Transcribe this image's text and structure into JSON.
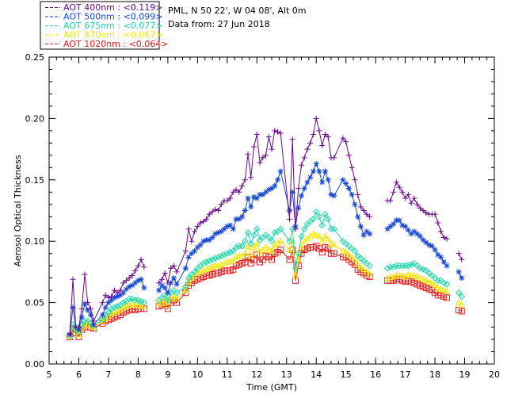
{
  "header": {
    "site": "PML, N 50 22', W 04 08', Alt 0m",
    "date": "Data from: 27 Jun 2018"
  },
  "chart_data": {
    "type": "line",
    "xlabel": "Time (GMT)",
    "ylabel": "Aerosol Optical Thickness",
    "xlim": [
      5,
      20
    ],
    "ylim": [
      0,
      0.25
    ],
    "xticks": [
      "5",
      "6",
      "7",
      "8",
      "9",
      "10",
      "11",
      "12",
      "13",
      "14",
      "15",
      "16",
      "17",
      "18",
      "19",
      "20"
    ],
    "yticks": [
      "0.00",
      "0.05",
      "0.10",
      "0.15",
      "0.20",
      "0.25"
    ],
    "legend_position": "top-left, above plot",
    "series": [
      {
        "name": "AOT  400nm : <0.119>",
        "color": "#6a0a8a",
        "marker": "plus",
        "x": [
          5.7,
          5.8,
          5.9,
          6.0,
          6.1,
          6.2,
          6.3,
          6.4,
          6.5,
          6.8,
          6.9,
          7.0,
          7.1,
          7.2,
          7.3,
          7.4,
          7.5,
          7.6,
          7.7,
          7.8,
          7.9,
          8.0,
          8.1,
          8.2,
          8.7,
          8.8,
          8.9,
          9.0,
          9.1,
          9.2,
          9.3,
          9.6,
          9.7,
          9.8,
          9.9,
          10.0,
          10.1,
          10.2,
          10.3,
          10.4,
          10.5,
          10.6,
          10.7,
          10.8,
          10.9,
          11.0,
          11.1,
          11.2,
          11.3,
          11.4,
          11.5,
          11.6,
          11.7,
          11.8,
          11.9,
          12.0,
          12.1,
          12.2,
          12.3,
          12.4,
          12.5,
          12.6,
          12.7,
          12.8,
          13.1,
          13.2,
          13.3,
          13.4,
          13.5,
          13.6,
          13.7,
          13.8,
          13.9,
          14.0,
          14.1,
          14.2,
          14.3,
          14.4,
          14.5,
          14.6,
          14.9,
          15.0,
          15.1,
          15.2,
          15.3,
          15.4,
          15.5,
          15.6,
          15.7,
          15.8,
          16.4,
          16.5,
          16.6,
          16.7,
          16.8,
          16.9,
          17.0,
          17.1,
          17.2,
          17.3,
          17.4,
          17.5,
          17.6,
          17.7,
          17.8,
          17.9,
          18.0,
          18.1,
          18.2,
          18.3,
          18.4,
          18.8,
          18.9
        ],
        "values": [
          0.025,
          0.069,
          0.03,
          0.03,
          0.045,
          0.073,
          0.05,
          0.045,
          0.035,
          0.05,
          0.056,
          0.054,
          0.055,
          0.06,
          0.058,
          0.06,
          0.066,
          0.068,
          0.07,
          0.072,
          0.076,
          0.08,
          0.085,
          0.079,
          0.066,
          0.069,
          0.074,
          0.066,
          0.078,
          0.08,
          0.075,
          0.092,
          0.11,
          0.1,
          0.108,
          0.112,
          0.115,
          0.116,
          0.118,
          0.122,
          0.124,
          0.126,
          0.125,
          0.13,
          0.133,
          0.133,
          0.135,
          0.14,
          0.142,
          0.14,
          0.145,
          0.15,
          0.171,
          0.152,
          0.177,
          0.187,
          0.164,
          0.168,
          0.17,
          0.185,
          0.175,
          0.19,
          0.189,
          0.188,
          0.118,
          0.183,
          0.11,
          0.143,
          0.162,
          0.168,
          0.175,
          0.18,
          0.187,
          0.2,
          0.19,
          0.178,
          0.187,
          0.185,
          0.168,
          0.168,
          0.184,
          0.181,
          0.17,
          0.16,
          0.15,
          0.138,
          0.128,
          0.125,
          0.122,
          0.12,
          0.133,
          0.133,
          0.14,
          0.148,
          0.144,
          0.14,
          0.135,
          0.138,
          0.131,
          0.135,
          0.13,
          0.127,
          0.125,
          0.123,
          0.122,
          0.122,
          0.122,
          0.115,
          0.108,
          0.103,
          0.102,
          0.09,
          0.085
        ]
      },
      {
        "name": "AOT  500nm : <0.099>",
        "color": "#1446d8",
        "marker": "star",
        "x": [
          5.7,
          5.8,
          5.9,
          6.0,
          6.1,
          6.2,
          6.3,
          6.4,
          6.5,
          6.8,
          6.9,
          7.0,
          7.1,
          7.2,
          7.3,
          7.4,
          7.5,
          7.6,
          7.7,
          7.8,
          7.9,
          8.0,
          8.1,
          8.2,
          8.7,
          8.8,
          8.9,
          9.0,
          9.1,
          9.2,
          9.3,
          9.6,
          9.7,
          9.8,
          9.9,
          10.0,
          10.1,
          10.2,
          10.3,
          10.4,
          10.5,
          10.6,
          10.7,
          10.8,
          10.9,
          11.0,
          11.1,
          11.2,
          11.3,
          11.4,
          11.5,
          11.6,
          11.7,
          11.8,
          11.9,
          12.0,
          12.1,
          12.2,
          12.3,
          12.4,
          12.5,
          12.6,
          12.7,
          12.8,
          13.1,
          13.2,
          13.3,
          13.4,
          13.5,
          13.6,
          13.7,
          13.8,
          13.9,
          14.0,
          14.1,
          14.2,
          14.3,
          14.4,
          14.5,
          14.6,
          14.9,
          15.0,
          15.1,
          15.2,
          15.3,
          15.4,
          15.5,
          15.6,
          15.7,
          15.8,
          16.4,
          16.5,
          16.6,
          16.7,
          16.8,
          16.9,
          17.0,
          17.1,
          17.2,
          17.3,
          17.4,
          17.5,
          17.6,
          17.7,
          17.8,
          17.9,
          18.0,
          18.1,
          18.2,
          18.3,
          18.4,
          18.8,
          18.9
        ],
        "values": [
          0.024,
          0.046,
          0.03,
          0.028,
          0.038,
          0.049,
          0.044,
          0.04,
          0.032,
          0.04,
          0.046,
          0.05,
          0.052,
          0.054,
          0.055,
          0.056,
          0.058,
          0.061,
          0.063,
          0.064,
          0.066,
          0.068,
          0.069,
          0.062,
          0.06,
          0.064,
          0.062,
          0.058,
          0.066,
          0.07,
          0.065,
          0.078,
          0.087,
          0.09,
          0.092,
          0.095,
          0.097,
          0.1,
          0.101,
          0.101,
          0.103,
          0.106,
          0.107,
          0.108,
          0.11,
          0.112,
          0.113,
          0.11,
          0.118,
          0.118,
          0.12,
          0.125,
          0.135,
          0.128,
          0.136,
          0.135,
          0.138,
          0.138,
          0.14,
          0.142,
          0.143,
          0.145,
          0.15,
          0.157,
          0.125,
          0.14,
          0.112,
          0.127,
          0.137,
          0.143,
          0.148,
          0.152,
          0.157,
          0.163,
          0.157,
          0.148,
          0.157,
          0.15,
          0.138,
          0.137,
          0.15,
          0.147,
          0.143,
          0.138,
          0.13,
          0.12,
          0.112,
          0.105,
          0.108,
          0.106,
          0.11,
          0.112,
          0.114,
          0.117,
          0.117,
          0.113,
          0.112,
          0.109,
          0.106,
          0.108,
          0.106,
          0.104,
          0.101,
          0.099,
          0.097,
          0.096,
          0.093,
          0.089,
          0.087,
          0.083,
          0.08,
          0.075,
          0.07
        ]
      },
      {
        "name": "AOT  675nm : <0.077>",
        "color": "#18d8a8",
        "marker": "diamond",
        "x": [
          5.7,
          5.8,
          5.9,
          6.0,
          6.1,
          6.2,
          6.3,
          6.4,
          6.5,
          6.8,
          6.9,
          7.0,
          7.1,
          7.2,
          7.3,
          7.4,
          7.5,
          7.6,
          7.7,
          7.8,
          7.9,
          8.0,
          8.1,
          8.2,
          8.7,
          8.8,
          8.9,
          9.0,
          9.1,
          9.2,
          9.3,
          9.6,
          9.7,
          9.8,
          9.9,
          10.0,
          10.1,
          10.2,
          10.3,
          10.4,
          10.5,
          10.6,
          10.7,
          10.8,
          10.9,
          11.0,
          11.1,
          11.2,
          11.3,
          11.4,
          11.5,
          11.6,
          11.7,
          11.8,
          11.9,
          12.0,
          12.1,
          12.2,
          12.3,
          12.4,
          12.5,
          12.6,
          12.7,
          12.8,
          13.1,
          13.2,
          13.3,
          13.4,
          13.5,
          13.6,
          13.7,
          13.8,
          13.9,
          14.0,
          14.1,
          14.2,
          14.3,
          14.4,
          14.5,
          14.6,
          14.9,
          15.0,
          15.1,
          15.2,
          15.3,
          15.4,
          15.5,
          15.6,
          15.7,
          15.8,
          16.4,
          16.5,
          16.6,
          16.7,
          16.8,
          16.9,
          17.0,
          17.1,
          17.2,
          17.3,
          17.4,
          17.5,
          17.6,
          17.7,
          17.8,
          17.9,
          18.0,
          18.1,
          18.2,
          18.3,
          18.4,
          18.8,
          18.9
        ],
        "values": [
          0.023,
          0.032,
          0.028,
          0.026,
          0.032,
          0.035,
          0.035,
          0.033,
          0.031,
          0.036,
          0.04,
          0.042,
          0.045,
          0.046,
          0.047,
          0.048,
          0.05,
          0.051,
          0.053,
          0.053,
          0.052,
          0.052,
          0.051,
          0.05,
          0.052,
          0.054,
          0.056,
          0.052,
          0.058,
          0.06,
          0.058,
          0.063,
          0.07,
          0.073,
          0.075,
          0.078,
          0.08,
          0.082,
          0.083,
          0.084,
          0.085,
          0.086,
          0.087,
          0.088,
          0.089,
          0.09,
          0.091,
          0.092,
          0.095,
          0.096,
          0.096,
          0.1,
          0.107,
          0.098,
          0.105,
          0.11,
          0.101,
          0.103,
          0.105,
          0.103,
          0.1,
          0.107,
          0.108,
          0.11,
          0.1,
          0.11,
          0.078,
          0.09,
          0.104,
          0.11,
          0.114,
          0.116,
          0.118,
          0.124,
          0.12,
          0.113,
          0.122,
          0.118,
          0.11,
          0.11,
          0.1,
          0.098,
          0.096,
          0.094,
          0.092,
          0.088,
          0.086,
          0.084,
          0.082,
          0.08,
          0.078,
          0.079,
          0.079,
          0.08,
          0.08,
          0.08,
          0.08,
          0.08,
          0.081,
          0.082,
          0.08,
          0.078,
          0.077,
          0.076,
          0.074,
          0.072,
          0.07,
          0.068,
          0.068,
          0.066,
          0.065,
          0.058,
          0.055
        ]
      },
      {
        "name": "AOT  870nm : <0.067>",
        "color": "#f2e600",
        "marker": "triangle",
        "x": [
          5.7,
          5.8,
          5.9,
          6.0,
          6.1,
          6.2,
          6.3,
          6.4,
          6.5,
          6.8,
          6.9,
          7.0,
          7.1,
          7.2,
          7.3,
          7.4,
          7.5,
          7.6,
          7.7,
          7.8,
          7.9,
          8.0,
          8.1,
          8.2,
          8.7,
          8.8,
          8.9,
          9.0,
          9.1,
          9.2,
          9.3,
          9.6,
          9.7,
          9.8,
          9.9,
          10.0,
          10.1,
          10.2,
          10.3,
          10.4,
          10.5,
          10.6,
          10.7,
          10.8,
          10.9,
          11.0,
          11.1,
          11.2,
          11.3,
          11.4,
          11.5,
          11.6,
          11.7,
          11.8,
          11.9,
          12.0,
          12.1,
          12.2,
          12.3,
          12.4,
          12.5,
          12.6,
          12.7,
          12.8,
          13.1,
          13.2,
          13.3,
          13.4,
          13.5,
          13.6,
          13.7,
          13.8,
          13.9,
          14.0,
          14.1,
          14.2,
          14.3,
          14.4,
          14.5,
          14.6,
          14.9,
          15.0,
          15.1,
          15.2,
          15.3,
          15.4,
          15.5,
          15.6,
          15.7,
          15.8,
          16.4,
          16.5,
          16.6,
          16.7,
          16.8,
          16.9,
          17.0,
          17.1,
          17.2,
          17.3,
          17.4,
          17.5,
          17.6,
          17.7,
          17.8,
          17.9,
          18.0,
          18.1,
          18.2,
          18.3,
          18.4,
          18.8,
          18.9
        ],
        "values": [
          0.023,
          0.03,
          0.026,
          0.024,
          0.03,
          0.032,
          0.032,
          0.031,
          0.03,
          0.035,
          0.037,
          0.039,
          0.041,
          0.042,
          0.043,
          0.044,
          0.046,
          0.047,
          0.048,
          0.049,
          0.048,
          0.048,
          0.047,
          0.047,
          0.049,
          0.05,
          0.052,
          0.048,
          0.053,
          0.055,
          0.053,
          0.06,
          0.067,
          0.07,
          0.072,
          0.074,
          0.075,
          0.076,
          0.077,
          0.078,
          0.079,
          0.08,
          0.08,
          0.081,
          0.082,
          0.083,
          0.084,
          0.084,
          0.087,
          0.088,
          0.088,
          0.09,
          0.096,
          0.088,
          0.095,
          0.098,
          0.091,
          0.093,
          0.095,
          0.093,
          0.092,
          0.097,
          0.098,
          0.1,
          0.093,
          0.1,
          0.072,
          0.085,
          0.095,
          0.1,
          0.102,
          0.104,
          0.106,
          0.105,
          0.104,
          0.1,
          0.104,
          0.102,
          0.098,
          0.097,
          0.092,
          0.091,
          0.089,
          0.087,
          0.085,
          0.081,
          0.079,
          0.077,
          0.075,
          0.073,
          0.07,
          0.071,
          0.071,
          0.072,
          0.072,
          0.072,
          0.071,
          0.073,
          0.072,
          0.072,
          0.071,
          0.07,
          0.069,
          0.068,
          0.067,
          0.066,
          0.064,
          0.062,
          0.061,
          0.06,
          0.059,
          0.05,
          0.048
        ]
      },
      {
        "name": "AOT 1020nm : <0.064>",
        "color": "#e81818",
        "marker": "square",
        "x": [
          5.7,
          5.8,
          5.9,
          6.0,
          6.1,
          6.2,
          6.3,
          6.4,
          6.5,
          6.8,
          6.9,
          7.0,
          7.1,
          7.2,
          7.3,
          7.4,
          7.5,
          7.6,
          7.7,
          7.8,
          7.9,
          8.0,
          8.1,
          8.2,
          8.7,
          8.8,
          8.9,
          9.0,
          9.1,
          9.2,
          9.3,
          9.6,
          9.7,
          9.8,
          9.9,
          10.0,
          10.1,
          10.2,
          10.3,
          10.4,
          10.5,
          10.6,
          10.7,
          10.8,
          10.9,
          11.0,
          11.1,
          11.2,
          11.3,
          11.4,
          11.5,
          11.6,
          11.7,
          11.8,
          11.9,
          12.0,
          12.1,
          12.2,
          12.3,
          12.4,
          12.5,
          12.6,
          12.7,
          12.8,
          13.1,
          13.2,
          13.3,
          13.4,
          13.5,
          13.6,
          13.7,
          13.8,
          13.9,
          14.0,
          14.1,
          14.2,
          14.3,
          14.4,
          14.5,
          14.6,
          14.9,
          15.0,
          15.1,
          15.2,
          15.3,
          15.4,
          15.5,
          15.6,
          15.7,
          15.8,
          16.4,
          16.5,
          16.6,
          16.7,
          16.8,
          16.9,
          17.0,
          17.1,
          17.2,
          17.3,
          17.4,
          17.5,
          17.6,
          17.7,
          17.8,
          17.9,
          18.0,
          18.1,
          18.2,
          18.3,
          18.4,
          18.8,
          18.9
        ],
        "values": [
          0.022,
          0.029,
          0.025,
          0.022,
          0.028,
          0.03,
          0.03,
          0.03,
          0.029,
          0.033,
          0.035,
          0.036,
          0.037,
          0.038,
          0.039,
          0.04,
          0.042,
          0.043,
          0.044,
          0.045,
          0.044,
          0.045,
          0.045,
          0.045,
          0.047,
          0.048,
          0.049,
          0.045,
          0.05,
          0.052,
          0.05,
          0.058,
          0.064,
          0.066,
          0.068,
          0.069,
          0.07,
          0.071,
          0.072,
          0.072,
          0.073,
          0.074,
          0.074,
          0.075,
          0.076,
          0.076,
          0.076,
          0.077,
          0.08,
          0.081,
          0.082,
          0.083,
          0.087,
          0.082,
          0.085,
          0.089,
          0.083,
          0.085,
          0.088,
          0.087,
          0.085,
          0.09,
          0.091,
          0.093,
          0.085,
          0.093,
          0.068,
          0.08,
          0.09,
          0.093,
          0.094,
          0.095,
          0.095,
          0.096,
          0.094,
          0.091,
          0.095,
          0.094,
          0.09,
          0.09,
          0.087,
          0.087,
          0.085,
          0.083,
          0.081,
          0.077,
          0.075,
          0.074,
          0.072,
          0.071,
          0.068,
          0.068,
          0.068,
          0.069,
          0.069,
          0.068,
          0.067,
          0.068,
          0.067,
          0.066,
          0.065,
          0.064,
          0.063,
          0.062,
          0.061,
          0.06,
          0.058,
          0.056,
          0.056,
          0.055,
          0.054,
          0.044,
          0.043
        ]
      }
    ]
  }
}
